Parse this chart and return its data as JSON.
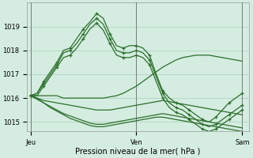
{
  "xlabel": "Pression niveau de la mer( hPa )",
  "bg_color": "#d4ede0",
  "grid_color": "#aacfbb",
  "line_color": "#2d6e2d",
  "day_labels": [
    "Jeu",
    "Ven",
    "Sam"
  ],
  "day_positions": [
    0,
    16,
    32
  ],
  "ylim": [
    1014.6,
    1020.0
  ],
  "yticks": [
    1015,
    1016,
    1017,
    1018,
    1019
  ],
  "xlim": [
    -0.5,
    33
  ],
  "series": [
    [
      1016.1,
      1016.2,
      1016.7,
      1017.1,
      1017.5,
      1018.0,
      1018.1,
      1018.5,
      1018.9,
      1019.2,
      1019.55,
      1019.35,
      1018.7,
      1018.2,
      1018.1,
      1018.2,
      1018.2,
      1018.1,
      1017.8,
      1017.0,
      1016.3,
      1016.0,
      1015.8,
      1015.7,
      1015.5,
      1015.3,
      1015.1,
      1015.0,
      1015.2,
      1015.5,
      1015.8,
      1016.0,
      1016.2
    ],
    [
      1016.1,
      1016.2,
      1016.6,
      1017.0,
      1017.4,
      1017.9,
      1018.0,
      1018.3,
      1018.7,
      1019.1,
      1019.35,
      1019.1,
      1018.5,
      1018.0,
      1017.9,
      1017.9,
      1018.0,
      1017.9,
      1017.6,
      1016.9,
      1016.2,
      1015.8,
      1015.6,
      1015.5,
      1015.3,
      1015.1,
      1014.9,
      1014.8,
      1014.9,
      1015.1,
      1015.3,
      1015.5,
      1015.7
    ],
    [
      1016.1,
      1016.1,
      1016.5,
      1016.9,
      1017.3,
      1017.7,
      1017.8,
      1018.1,
      1018.5,
      1018.9,
      1019.15,
      1018.85,
      1018.3,
      1017.8,
      1017.7,
      1017.7,
      1017.8,
      1017.7,
      1017.4,
      1016.7,
      1016.0,
      1015.6,
      1015.4,
      1015.3,
      1015.1,
      1014.9,
      1014.7,
      1014.6,
      1014.7,
      1014.9,
      1015.1,
      1015.3,
      1015.5
    ],
    [
      1016.1,
      1016.1,
      1016.1,
      1016.1,
      1016.1,
      1016.0,
      1016.0,
      1016.0,
      1016.0,
      1016.0,
      1016.0,
      1016.0,
      1016.05,
      1016.1,
      1016.2,
      1016.35,
      1016.5,
      1016.7,
      1016.9,
      1017.1,
      1017.3,
      1017.45,
      1017.6,
      1017.7,
      1017.75,
      1017.8,
      1017.8,
      1017.8,
      1017.75,
      1017.7,
      1017.65,
      1017.6,
      1017.55
    ],
    [
      1016.1,
      1016.0,
      1015.9,
      1015.85,
      1015.8,
      1015.75,
      1015.7,
      1015.65,
      1015.6,
      1015.55,
      1015.5,
      1015.5,
      1015.5,
      1015.55,
      1015.6,
      1015.65,
      1015.7,
      1015.75,
      1015.8,
      1015.85,
      1015.9,
      1015.85,
      1015.8,
      1015.75,
      1015.7,
      1015.65,
      1015.6,
      1015.55,
      1015.5,
      1015.45,
      1015.4,
      1015.35,
      1015.3
    ],
    [
      1016.1,
      1016.0,
      1015.8,
      1015.65,
      1015.5,
      1015.35,
      1015.25,
      1015.15,
      1015.05,
      1014.95,
      1014.9,
      1014.9,
      1014.95,
      1015.0,
      1015.05,
      1015.1,
      1015.15,
      1015.2,
      1015.25,
      1015.3,
      1015.35,
      1015.3,
      1015.25,
      1015.2,
      1015.15,
      1015.1,
      1015.05,
      1015.0,
      1014.95,
      1014.9,
      1014.85,
      1014.8,
      1014.75
    ],
    [
      1016.1,
      1015.95,
      1015.8,
      1015.6,
      1015.45,
      1015.3,
      1015.15,
      1015.05,
      1014.95,
      1014.85,
      1014.8,
      1014.8,
      1014.85,
      1014.9,
      1014.95,
      1015.0,
      1015.05,
      1015.1,
      1015.15,
      1015.2,
      1015.2,
      1015.15,
      1015.1,
      1015.05,
      1015.0,
      1014.95,
      1014.9,
      1014.85,
      1014.8,
      1014.75,
      1014.7,
      1014.65,
      1014.6
    ]
  ],
  "marker_series": [
    0,
    1,
    2
  ],
  "marker_every": 2,
  "marker_size": 3.5,
  "line_width": 0.9,
  "tick_fontsize": 6,
  "xlabel_fontsize": 7
}
